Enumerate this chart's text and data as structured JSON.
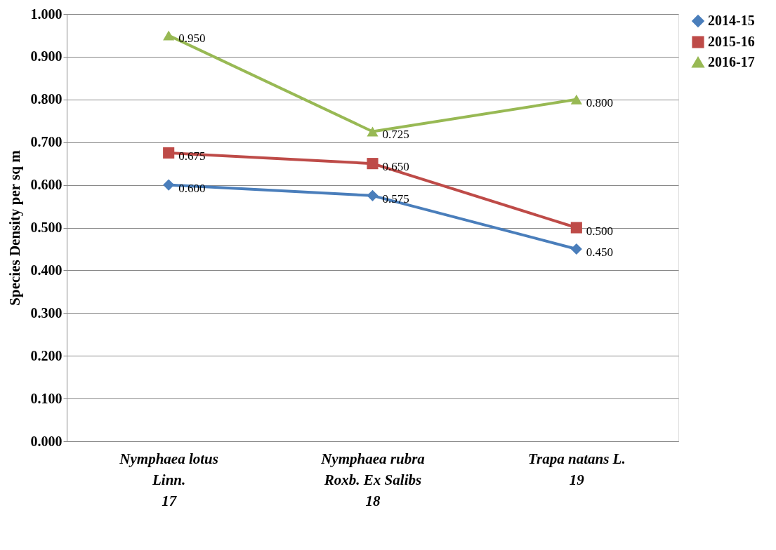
{
  "chart_data": {
    "type": "line",
    "ylabel": "Species Density per sq m",
    "categories": [
      "Nymphaea lotus Linn.",
      "Nymphaea rubra Roxb. Ex Salibs",
      "Trapa natans L."
    ],
    "annotations": [
      "17",
      "18",
      "19"
    ],
    "series": [
      {
        "name": "2014-15",
        "color": "#4a7ebb",
        "marker": "diamond",
        "values": [
          0.6,
          0.575,
          0.45
        ],
        "value_labels": [
          "0.600",
          "0.575",
          "0.450"
        ]
      },
      {
        "name": "2015-16",
        "color": "#be4b48",
        "marker": "square",
        "values": [
          0.675,
          0.65,
          0.5
        ],
        "value_labels": [
          "0.675",
          "0.650",
          "0.500"
        ]
      },
      {
        "name": "2016-17",
        "color": "#98b954",
        "marker": "triangle",
        "values": [
          0.95,
          0.725,
          0.8
        ],
        "value_labels": [
          "0.950",
          "0.725",
          "0.800"
        ]
      }
    ],
    "ylim": [
      0,
      1
    ],
    "yticks": [
      {
        "value": 0,
        "label": "0.000"
      },
      {
        "value": 0.1,
        "label": "0.100"
      },
      {
        "value": 0.2,
        "label": "0.200"
      },
      {
        "value": 0.3,
        "label": "0.300"
      },
      {
        "value": 0.4,
        "label": "0.400"
      },
      {
        "value": 0.5,
        "label": "0.500"
      },
      {
        "value": 0.6,
        "label": "0.600"
      },
      {
        "value": 0.7,
        "label": "0.700"
      },
      {
        "value": 0.8,
        "label": "0.800"
      },
      {
        "value": 0.9,
        "label": "0.900"
      },
      {
        "value": 1,
        "label": "1.000"
      }
    ],
    "grid": "y",
    "legend": "right",
    "line_style": "solid"
  }
}
